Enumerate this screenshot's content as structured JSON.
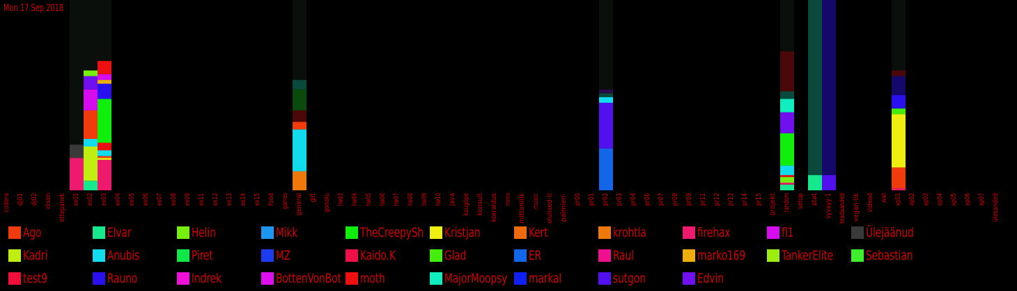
{
  "date_label": "Mon 17 Sep 2018",
  "chart_data": {
    "type": "bar",
    "stacked": true,
    "categories": [
      "codera",
      "dj01",
      "dj02",
      "eksam",
      "ettepanek",
      "ex01",
      "ex02",
      "ex03",
      "ex04",
      "ex05",
      "ex06",
      "ex07",
      "ex08",
      "ex09",
      "ex11",
      "ex12",
      "ex13",
      "ex14",
      "ex15",
      "food",
      "games",
      "general",
      "git",
      "gomoku",
      "hw03",
      "hw04",
      "hw05",
      "hw06",
      "hw07",
      "hw08",
      "hw09",
      "hw10",
      "java",
      "kaugõpe",
      "konsult",
      "korraldus",
      "meme",
      "mitteniiik",
      "music",
      "olulised-ti",
      "palmieri-",
      "pr00",
      "pr01",
      "pr02",
      "pr03",
      "pr04",
      "pr06",
      "pr07",
      "pr08",
      "pr09",
      "pr11",
      "pr12",
      "pr13",
      "pr14",
      "pr15",
      "projekt",
      "random",
      "setup",
      "stat",
      "syvayy-1",
      "teadaanded",
      "vegan-tik",
      "videod",
      "wat",
      "xp01",
      "xp02",
      "xp03",
      "xp04",
      "xp05",
      "xp06",
      "xp07",
      "ülesanded"
    ],
    "scale_max": 100,
    "stacks": {
      "ex01": [
        {
          "series": "firehax",
          "value": 17
        },
        {
          "series": "Ülejäänud",
          "value": 7
        },
        {
          "series": "_bg",
          "value": 76
        }
      ],
      "ex02": [
        {
          "series": "Elvar",
          "value": 5
        },
        {
          "series": "Kadri",
          "value": 18
        },
        {
          "series": "Anubis",
          "value": 4
        },
        {
          "series": "Ago",
          "value": 15
        },
        {
          "series": "fl1",
          "value": 11
        },
        {
          "series": "Edvin",
          "value": 7
        },
        {
          "series": "Helin",
          "value": 3
        },
        {
          "series": "_bg",
          "value": 37
        }
      ],
      "ex03": [
        {
          "series": "firehax",
          "value": 16
        },
        {
          "series": "Kristjan",
          "value": 1
        },
        {
          "series": "Ago",
          "value": 1
        },
        {
          "series": "Anubis",
          "value": 3
        },
        {
          "series": "moth",
          "value": 4
        },
        {
          "series": "TheCreepySh",
          "value": 23
        },
        {
          "series": "Rauno",
          "value": 8
        },
        {
          "series": "marko169",
          "value": 2
        },
        {
          "series": "fl1",
          "value": 3
        },
        {
          "series": "moth",
          "value": 7
        },
        {
          "series": "_bg",
          "value": 32
        }
      ],
      "general": [
        {
          "series": "krohtla",
          "value": 10
        },
        {
          "series": "Anubis",
          "value": 22
        },
        {
          "series": "Ago",
          "value": 4
        },
        {
          "series": "_dark_red",
          "value": 6
        },
        {
          "series": "_dark_green",
          "value": 11
        },
        {
          "series": "_dark_teal",
          "value": 5
        },
        {
          "series": "_bg",
          "value": 42
        }
      ],
      "pr02": [
        {
          "series": "ER",
          "value": 22
        },
        {
          "series": "sutgon",
          "value": 24
        },
        {
          "series": "Anubis",
          "value": 3
        },
        {
          "series": "_dark_teal",
          "value": 2
        },
        {
          "series": "_dark_purple",
          "value": 2
        },
        {
          "series": "_bg",
          "value": 47
        }
      ],
      "random": [
        {
          "series": "Elvar",
          "value": 3
        },
        {
          "series": "firehax",
          "value": 1
        },
        {
          "series": "Helin",
          "value": 3
        },
        {
          "series": "moth",
          "value": 1
        },
        {
          "series": "Anubis",
          "value": 5
        },
        {
          "series": "TheCreepySh",
          "value": 17
        },
        {
          "series": "Edvin",
          "value": 11
        },
        {
          "series": "MajorMoopsy",
          "value": 7
        },
        {
          "series": "_dark_teal",
          "value": 4
        },
        {
          "series": "_dark_red",
          "value": 21
        },
        {
          "series": "_bg",
          "value": 27
        }
      ],
      "stat": [
        {
          "series": "Elvar",
          "value": 8
        },
        {
          "series": "_dark_teal",
          "value": 92
        }
      ],
      "syvayy-1": [
        {
          "series": "sutgon",
          "value": 8
        },
        {
          "series": "_navy",
          "value": 92
        }
      ],
      "xp01": [
        {
          "series": "firehax",
          "value": 1
        },
        {
          "series": "Ago",
          "value": 11
        },
        {
          "series": "Kristjan",
          "value": 28
        },
        {
          "series": "Glad",
          "value": 3
        },
        {
          "series": "Rauno",
          "value": 7
        },
        {
          "series": "_navy",
          "value": 10
        },
        {
          "series": "_dark_red",
          "value": 3
        },
        {
          "series": "_bg",
          "value": 37
        }
      ]
    },
    "legend": [
      {
        "name": "Ago",
        "color": "#f03c0c"
      },
      {
        "name": "Elvar",
        "color": "#16e88e"
      },
      {
        "name": "Helin",
        "color": "#76ee10"
      },
      {
        "name": "Mikk",
        "color": "#1c96ee"
      },
      {
        "name": "TheCreepySh",
        "color": "#10ee0c"
      },
      {
        "name": "Kristjan",
        "color": "#eeee10"
      },
      {
        "name": "Kert",
        "color": "#ee6a0c"
      },
      {
        "name": "krohtla",
        "color": "#ee780a"
      },
      {
        "name": "firehax",
        "color": "#ee1a6e"
      },
      {
        "name": "fl1",
        "color": "#d40cee"
      },
      {
        "name": "Ülejäänud",
        "color": "#3a3a3a"
      },
      {
        "name": "Kadri",
        "color": "#c0ee10"
      },
      {
        "name": "Anubis",
        "color": "#10dcee"
      },
      {
        "name": "Piret",
        "color": "#10e84a"
      },
      {
        "name": "MZ",
        "color": "#1c3cf0"
      },
      {
        "name": "Kaido.K",
        "color": "#ee1048"
      },
      {
        "name": "Glad",
        "color": "#44ee0c"
      },
      {
        "name": "ER",
        "color": "#1466e8"
      },
      {
        "name": "Raul",
        "color": "#ee108e"
      },
      {
        "name": "marko169",
        "color": "#eeae0c"
      },
      {
        "name": "TankerElite",
        "color": "#9cee10"
      },
      {
        "name": "Sebastian",
        "color": "#3eee2c"
      },
      {
        "name": "test9",
        "color": "#ee1038"
      },
      {
        "name": "Rauno",
        "color": "#2a10ee"
      },
      {
        "name": "Indrek",
        "color": "#ee10d6"
      },
      {
        "name": "BottenVonBot",
        "color": "#e010ee"
      },
      {
        "name": "moth",
        "color": "#ee1010"
      },
      {
        "name": "MajorMoopsy",
        "color": "#10eec0"
      },
      {
        "name": "markal",
        "color": "#1020f0"
      },
      {
        "name": "sutgon",
        "color": "#5210ee"
      },
      {
        "name": "Edvin",
        "color": "#7010ee"
      }
    ],
    "extra_colors": {
      "_bg": "#0b0f0c",
      "_dark_teal": "#0a4a3c",
      "_dark_red": "#4a0808",
      "_dark_green": "#0a4a0a",
      "_dark_purple": "#2a0a4a",
      "_navy": "#14086a"
    },
    "label_color": "#d40000"
  }
}
